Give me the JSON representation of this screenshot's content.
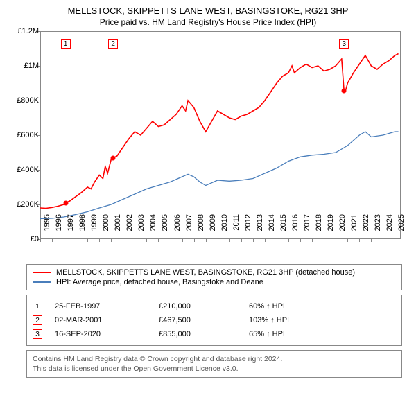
{
  "title": "MELLSTOCK, SKIPPETTS LANE WEST, BASINGSTOKE, RG21 3HP",
  "subtitle": "Price paid vs. HM Land Registry's House Price Index (HPI)",
  "chart": {
    "type": "line",
    "background_color": "#ffffff",
    "grid_color": "#dddddd",
    "axis_color": "#888888",
    "xlim": [
      1995,
      2025.5
    ],
    "ylim": [
      0,
      1200000
    ],
    "ytick_step": 200000,
    "ytick_labels": [
      "£0",
      "£200K",
      "£400K",
      "£600K",
      "£800K",
      "£1M",
      "£1.2M"
    ],
    "xticks": [
      1995,
      1996,
      1997,
      1998,
      1999,
      2000,
      2001,
      2002,
      2003,
      2004,
      2005,
      2006,
      2007,
      2008,
      2009,
      2010,
      2011,
      2012,
      2013,
      2014,
      2015,
      2016,
      2017,
      2018,
      2019,
      2020,
      2021,
      2022,
      2023,
      2024,
      2025
    ],
    "series": [
      {
        "name": "MELLSTOCK, SKIPPETTS LANE WEST, BASINGSTOKE, RG21 3HP (detached house)",
        "color": "#ff0000",
        "line_width": 1.6,
        "data": [
          [
            1995.0,
            180000
          ],
          [
            1995.5,
            178000
          ],
          [
            1996.0,
            183000
          ],
          [
            1996.5,
            190000
          ],
          [
            1997.0,
            200000
          ],
          [
            1997.15,
            210000
          ],
          [
            1997.5,
            220000
          ],
          [
            1998.0,
            245000
          ],
          [
            1998.5,
            270000
          ],
          [
            1999.0,
            300000
          ],
          [
            1999.3,
            290000
          ],
          [
            1999.6,
            330000
          ],
          [
            2000.0,
            370000
          ],
          [
            2000.3,
            350000
          ],
          [
            2000.5,
            420000
          ],
          [
            2000.7,
            380000
          ],
          [
            2001.0,
            460000
          ],
          [
            2001.17,
            467500
          ],
          [
            2001.5,
            480000
          ],
          [
            2002.0,
            530000
          ],
          [
            2002.5,
            580000
          ],
          [
            2003.0,
            620000
          ],
          [
            2003.5,
            600000
          ],
          [
            2004.0,
            640000
          ],
          [
            2004.5,
            680000
          ],
          [
            2005.0,
            650000
          ],
          [
            2005.5,
            660000
          ],
          [
            2006.0,
            690000
          ],
          [
            2006.5,
            720000
          ],
          [
            2007.0,
            770000
          ],
          [
            2007.3,
            740000
          ],
          [
            2007.5,
            800000
          ],
          [
            2008.0,
            760000
          ],
          [
            2008.5,
            680000
          ],
          [
            2009.0,
            620000
          ],
          [
            2009.5,
            680000
          ],
          [
            2010.0,
            740000
          ],
          [
            2010.5,
            720000
          ],
          [
            2011.0,
            700000
          ],
          [
            2011.5,
            690000
          ],
          [
            2012.0,
            710000
          ],
          [
            2012.5,
            720000
          ],
          [
            2013.0,
            740000
          ],
          [
            2013.5,
            760000
          ],
          [
            2014.0,
            800000
          ],
          [
            2014.5,
            850000
          ],
          [
            2015.0,
            900000
          ],
          [
            2015.5,
            940000
          ],
          [
            2016.0,
            960000
          ],
          [
            2016.3,
            1000000
          ],
          [
            2016.5,
            960000
          ],
          [
            2017.0,
            990000
          ],
          [
            2017.5,
            1010000
          ],
          [
            2018.0,
            990000
          ],
          [
            2018.5,
            1000000
          ],
          [
            2019.0,
            970000
          ],
          [
            2019.5,
            980000
          ],
          [
            2020.0,
            1000000
          ],
          [
            2020.5,
            1040000
          ],
          [
            2020.7,
            855000
          ],
          [
            2020.8,
            850000
          ],
          [
            2021.0,
            900000
          ],
          [
            2021.5,
            960000
          ],
          [
            2022.0,
            1010000
          ],
          [
            2022.5,
            1060000
          ],
          [
            2023.0,
            1000000
          ],
          [
            2023.5,
            980000
          ],
          [
            2024.0,
            1010000
          ],
          [
            2024.5,
            1030000
          ],
          [
            2025.0,
            1060000
          ],
          [
            2025.3,
            1070000
          ]
        ]
      },
      {
        "name": "HPI: Average price, detached house, Basingstoke and Deane",
        "color": "#4a7ebb",
        "line_width": 1.3,
        "data": [
          [
            1995.0,
            118000
          ],
          [
            1996.0,
            120000
          ],
          [
            1997.0,
            128000
          ],
          [
            1998.0,
            142000
          ],
          [
            1999.0,
            158000
          ],
          [
            2000.0,
            180000
          ],
          [
            2001.0,
            200000
          ],
          [
            2002.0,
            230000
          ],
          [
            2003.0,
            260000
          ],
          [
            2004.0,
            290000
          ],
          [
            2005.0,
            310000
          ],
          [
            2006.0,
            330000
          ],
          [
            2007.0,
            360000
          ],
          [
            2007.5,
            375000
          ],
          [
            2008.0,
            360000
          ],
          [
            2008.5,
            330000
          ],
          [
            2009.0,
            310000
          ],
          [
            2010.0,
            340000
          ],
          [
            2011.0,
            335000
          ],
          [
            2012.0,
            340000
          ],
          [
            2013.0,
            350000
          ],
          [
            2014.0,
            380000
          ],
          [
            2015.0,
            410000
          ],
          [
            2016.0,
            450000
          ],
          [
            2017.0,
            475000
          ],
          [
            2018.0,
            485000
          ],
          [
            2019.0,
            490000
          ],
          [
            2020.0,
            500000
          ],
          [
            2021.0,
            540000
          ],
          [
            2022.0,
            600000
          ],
          [
            2022.5,
            620000
          ],
          [
            2023.0,
            590000
          ],
          [
            2024.0,
            600000
          ],
          [
            2025.0,
            620000
          ],
          [
            2025.3,
            620000
          ]
        ]
      }
    ],
    "markers": [
      {
        "n": "1",
        "x": 1997.15,
        "y": 210000,
        "box_y": 1130000
      },
      {
        "n": "2",
        "x": 2001.17,
        "y": 467500,
        "box_y": 1130000
      },
      {
        "n": "3",
        "x": 2020.71,
        "y": 855000,
        "box_y": 1130000
      }
    ],
    "marker_dot_color": "#ff0000",
    "marker_border_color": "#ff0000"
  },
  "legend": {
    "items": [
      {
        "color": "#ff0000",
        "label": "MELLSTOCK, SKIPPETTS LANE WEST, BASINGSTOKE, RG21 3HP (detached house)"
      },
      {
        "color": "#4a7ebb",
        "label": "HPI: Average price, detached house, Basingstoke and Deane"
      }
    ]
  },
  "sales": [
    {
      "n": "1",
      "date": "25-FEB-1997",
      "price": "£210,000",
      "pct": "60% ↑ HPI"
    },
    {
      "n": "2",
      "date": "02-MAR-2001",
      "price": "£467,500",
      "pct": "103% ↑ HPI"
    },
    {
      "n": "3",
      "date": "16-SEP-2020",
      "price": "£855,000",
      "pct": "65% ↑ HPI"
    }
  ],
  "footer": {
    "line1": "Contains HM Land Registry data © Crown copyright and database right 2024.",
    "line2": "This data is licensed under the Open Government Licence v3.0."
  }
}
